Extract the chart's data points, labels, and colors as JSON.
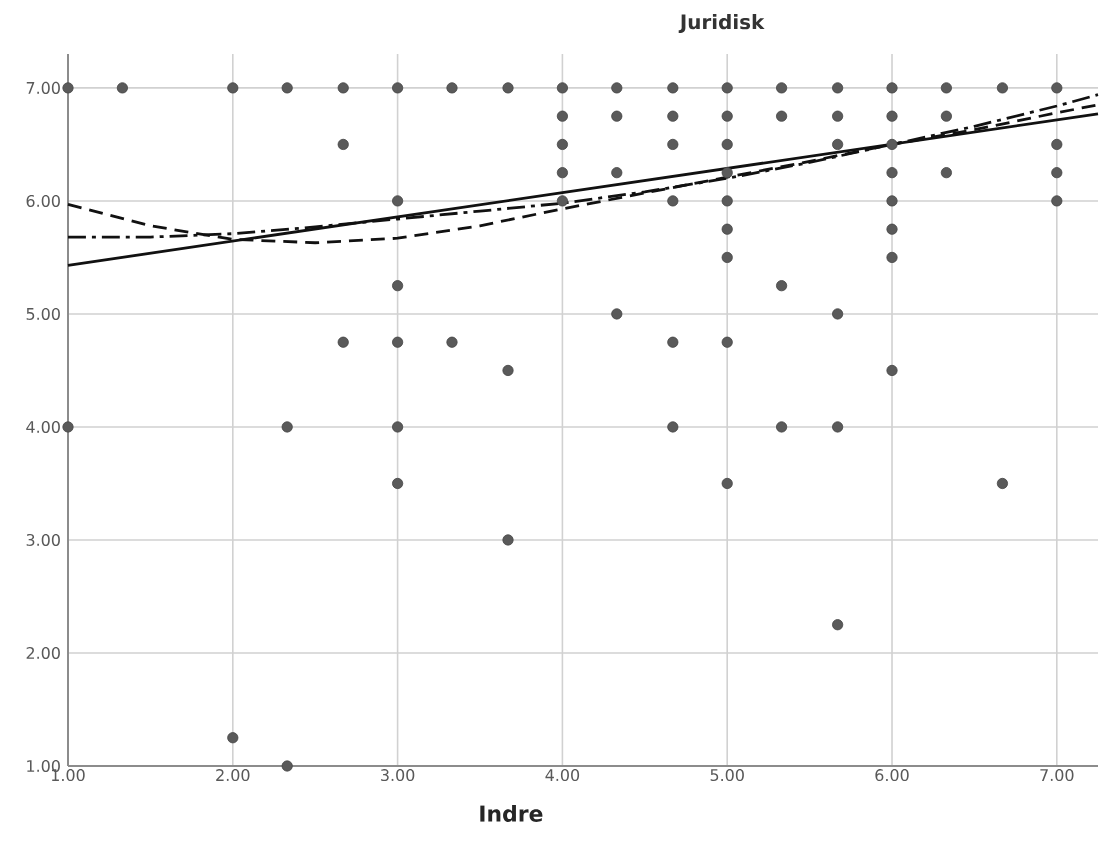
{
  "chart_data": {
    "type": "scatter",
    "title": "Juridisk",
    "xlabel": "Indre",
    "xlim": [
      1,
      7.25
    ],
    "ylim": [
      1,
      7.3
    ],
    "xticks": [
      {
        "value": 1,
        "label": "1.00"
      },
      {
        "value": 2,
        "label": "2.00"
      },
      {
        "value": 3,
        "label": "3.00"
      },
      {
        "value": 4,
        "label": "4.00"
      },
      {
        "value": 5,
        "label": "5.00"
      },
      {
        "value": 6,
        "label": "6.00"
      },
      {
        "value": 7,
        "label": "7.00"
      }
    ],
    "yticks": [
      {
        "value": 1,
        "label": "1.00"
      },
      {
        "value": 2,
        "label": "2.00"
      },
      {
        "value": 3,
        "label": "3.00"
      },
      {
        "value": 4,
        "label": "4.00"
      },
      {
        "value": 5,
        "label": "5.00"
      },
      {
        "value": 6,
        "label": "6.00"
      },
      {
        "value": 7,
        "label": "7.00"
      }
    ],
    "grid": true,
    "marker": "circle",
    "series": [
      {
        "color": "#5a5a5a",
        "x": [
          1.0,
          1.33,
          2.0,
          2.33,
          2.67,
          3.0,
          3.33,
          3.67,
          4.0,
          4.33,
          4.67,
          5.0,
          5.33,
          5.67,
          6.0,
          6.33,
          6.67,
          7.0,
          4.0,
          4.33,
          4.67,
          5.0,
          5.33,
          5.67,
          6.0,
          6.33,
          2.67,
          4.0,
          4.67,
          5.0,
          5.67,
          6.0,
          7.0,
          4.0,
          4.33,
          5.0,
          6.0,
          6.33,
          7.0,
          3.0,
          4.0,
          4.67,
          5.0,
          6.0,
          7.0,
          5.0,
          6.0,
          5.0,
          6.0,
          3.0,
          5.33,
          4.33,
          5.67,
          2.67,
          3.0,
          3.33,
          4.67,
          5.0,
          3.67,
          6.0,
          1.0,
          2.33,
          3.0,
          4.67,
          5.33,
          5.67,
          3.0,
          5.0,
          6.67,
          3.67,
          5.67,
          2.0,
          2.33
        ],
        "values": [
          7.0,
          7.0,
          7.0,
          7.0,
          7.0,
          7.0,
          7.0,
          7.0,
          7.0,
          7.0,
          7.0,
          7.0,
          7.0,
          7.0,
          7.0,
          7.0,
          7.0,
          7.0,
          6.75,
          6.75,
          6.75,
          6.75,
          6.75,
          6.75,
          6.75,
          6.75,
          6.5,
          6.5,
          6.5,
          6.5,
          6.5,
          6.5,
          6.5,
          6.25,
          6.25,
          6.25,
          6.25,
          6.25,
          6.25,
          6.0,
          6.0,
          6.0,
          6.0,
          6.0,
          6.0,
          5.75,
          5.75,
          5.5,
          5.5,
          5.25,
          5.25,
          5.0,
          5.0,
          4.75,
          4.75,
          4.75,
          4.75,
          4.75,
          4.5,
          4.5,
          4.0,
          4.0,
          4.0,
          4.0,
          4.0,
          4.0,
          3.5,
          3.5,
          3.5,
          3.0,
          2.25,
          1.25,
          1.0
        ]
      },
      {
        "type": "line",
        "color": "#111111",
        "line_style": "solid",
        "marker": "none",
        "x": [
          1.0,
          7.25
        ],
        "values": [
          5.43,
          6.77
        ]
      },
      {
        "type": "line",
        "color": "#111111",
        "line_style": "dashed",
        "marker": "none",
        "x": [
          1.0,
          1.5,
          2.0,
          2.5,
          3.0,
          3.5,
          4.0,
          4.5,
          5.0,
          5.5,
          6.0,
          6.5,
          7.0,
          7.25
        ],
        "values": [
          5.97,
          5.78,
          5.66,
          5.63,
          5.67,
          5.78,
          5.93,
          6.07,
          6.21,
          6.35,
          6.5,
          6.63,
          6.78,
          6.85
        ]
      },
      {
        "type": "line",
        "color": "#111111",
        "line_style": "dashdot",
        "marker": "none",
        "x": [
          1.0,
          1.5,
          2.0,
          2.5,
          3.0,
          3.5,
          4.0,
          4.5,
          5.0,
          5.5,
          6.0,
          6.5,
          7.0,
          7.25
        ],
        "values": [
          5.68,
          5.68,
          5.71,
          5.77,
          5.84,
          5.91,
          5.98,
          6.08,
          6.2,
          6.34,
          6.5,
          6.66,
          6.84,
          6.94
        ]
      }
    ]
  }
}
